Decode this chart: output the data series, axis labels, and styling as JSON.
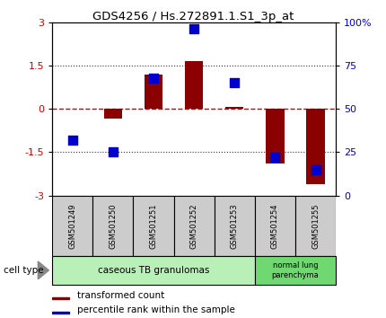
{
  "title": "GDS4256 / Hs.272891.1.S1_3p_at",
  "samples": [
    "GSM501249",
    "GSM501250",
    "GSM501251",
    "GSM501252",
    "GSM501253",
    "GSM501254",
    "GSM501255"
  ],
  "transformed_count": [
    0.0,
    -0.35,
    1.2,
    1.65,
    0.08,
    -1.9,
    -2.6
  ],
  "percentile_rank": [
    32,
    25,
    68,
    96,
    65,
    22,
    15
  ],
  "ylim_left": [
    -3,
    3
  ],
  "ylim_right": [
    0,
    100
  ],
  "left_yticks": [
    -3,
    -1.5,
    0,
    1.5,
    3
  ],
  "left_yticklabels": [
    "-3",
    "-1.5",
    "0",
    "1.5",
    "3"
  ],
  "right_yticks": [
    0,
    25,
    50,
    75,
    100
  ],
  "right_yticklabels": [
    "0",
    "25",
    "50",
    "75",
    "100%"
  ],
  "bar_color": "#8B0000",
  "dot_color": "#0000CD",
  "zero_line_color": "#cc0000",
  "dotted_color": "#333333",
  "bg_color": "#ffffff",
  "cell_type_1_label": "caseous TB granulomas",
  "cell_type_1_color": "#b8f0b8",
  "cell_type_1_count": 5,
  "cell_type_2_label": "normal lung\nparenchyma",
  "cell_type_2_color": "#70d870",
  "cell_type_2_count": 2,
  "legend_red_label": "transformed count",
  "legend_blue_label": "percentile rank within the sample",
  "cell_type_text": "cell type"
}
